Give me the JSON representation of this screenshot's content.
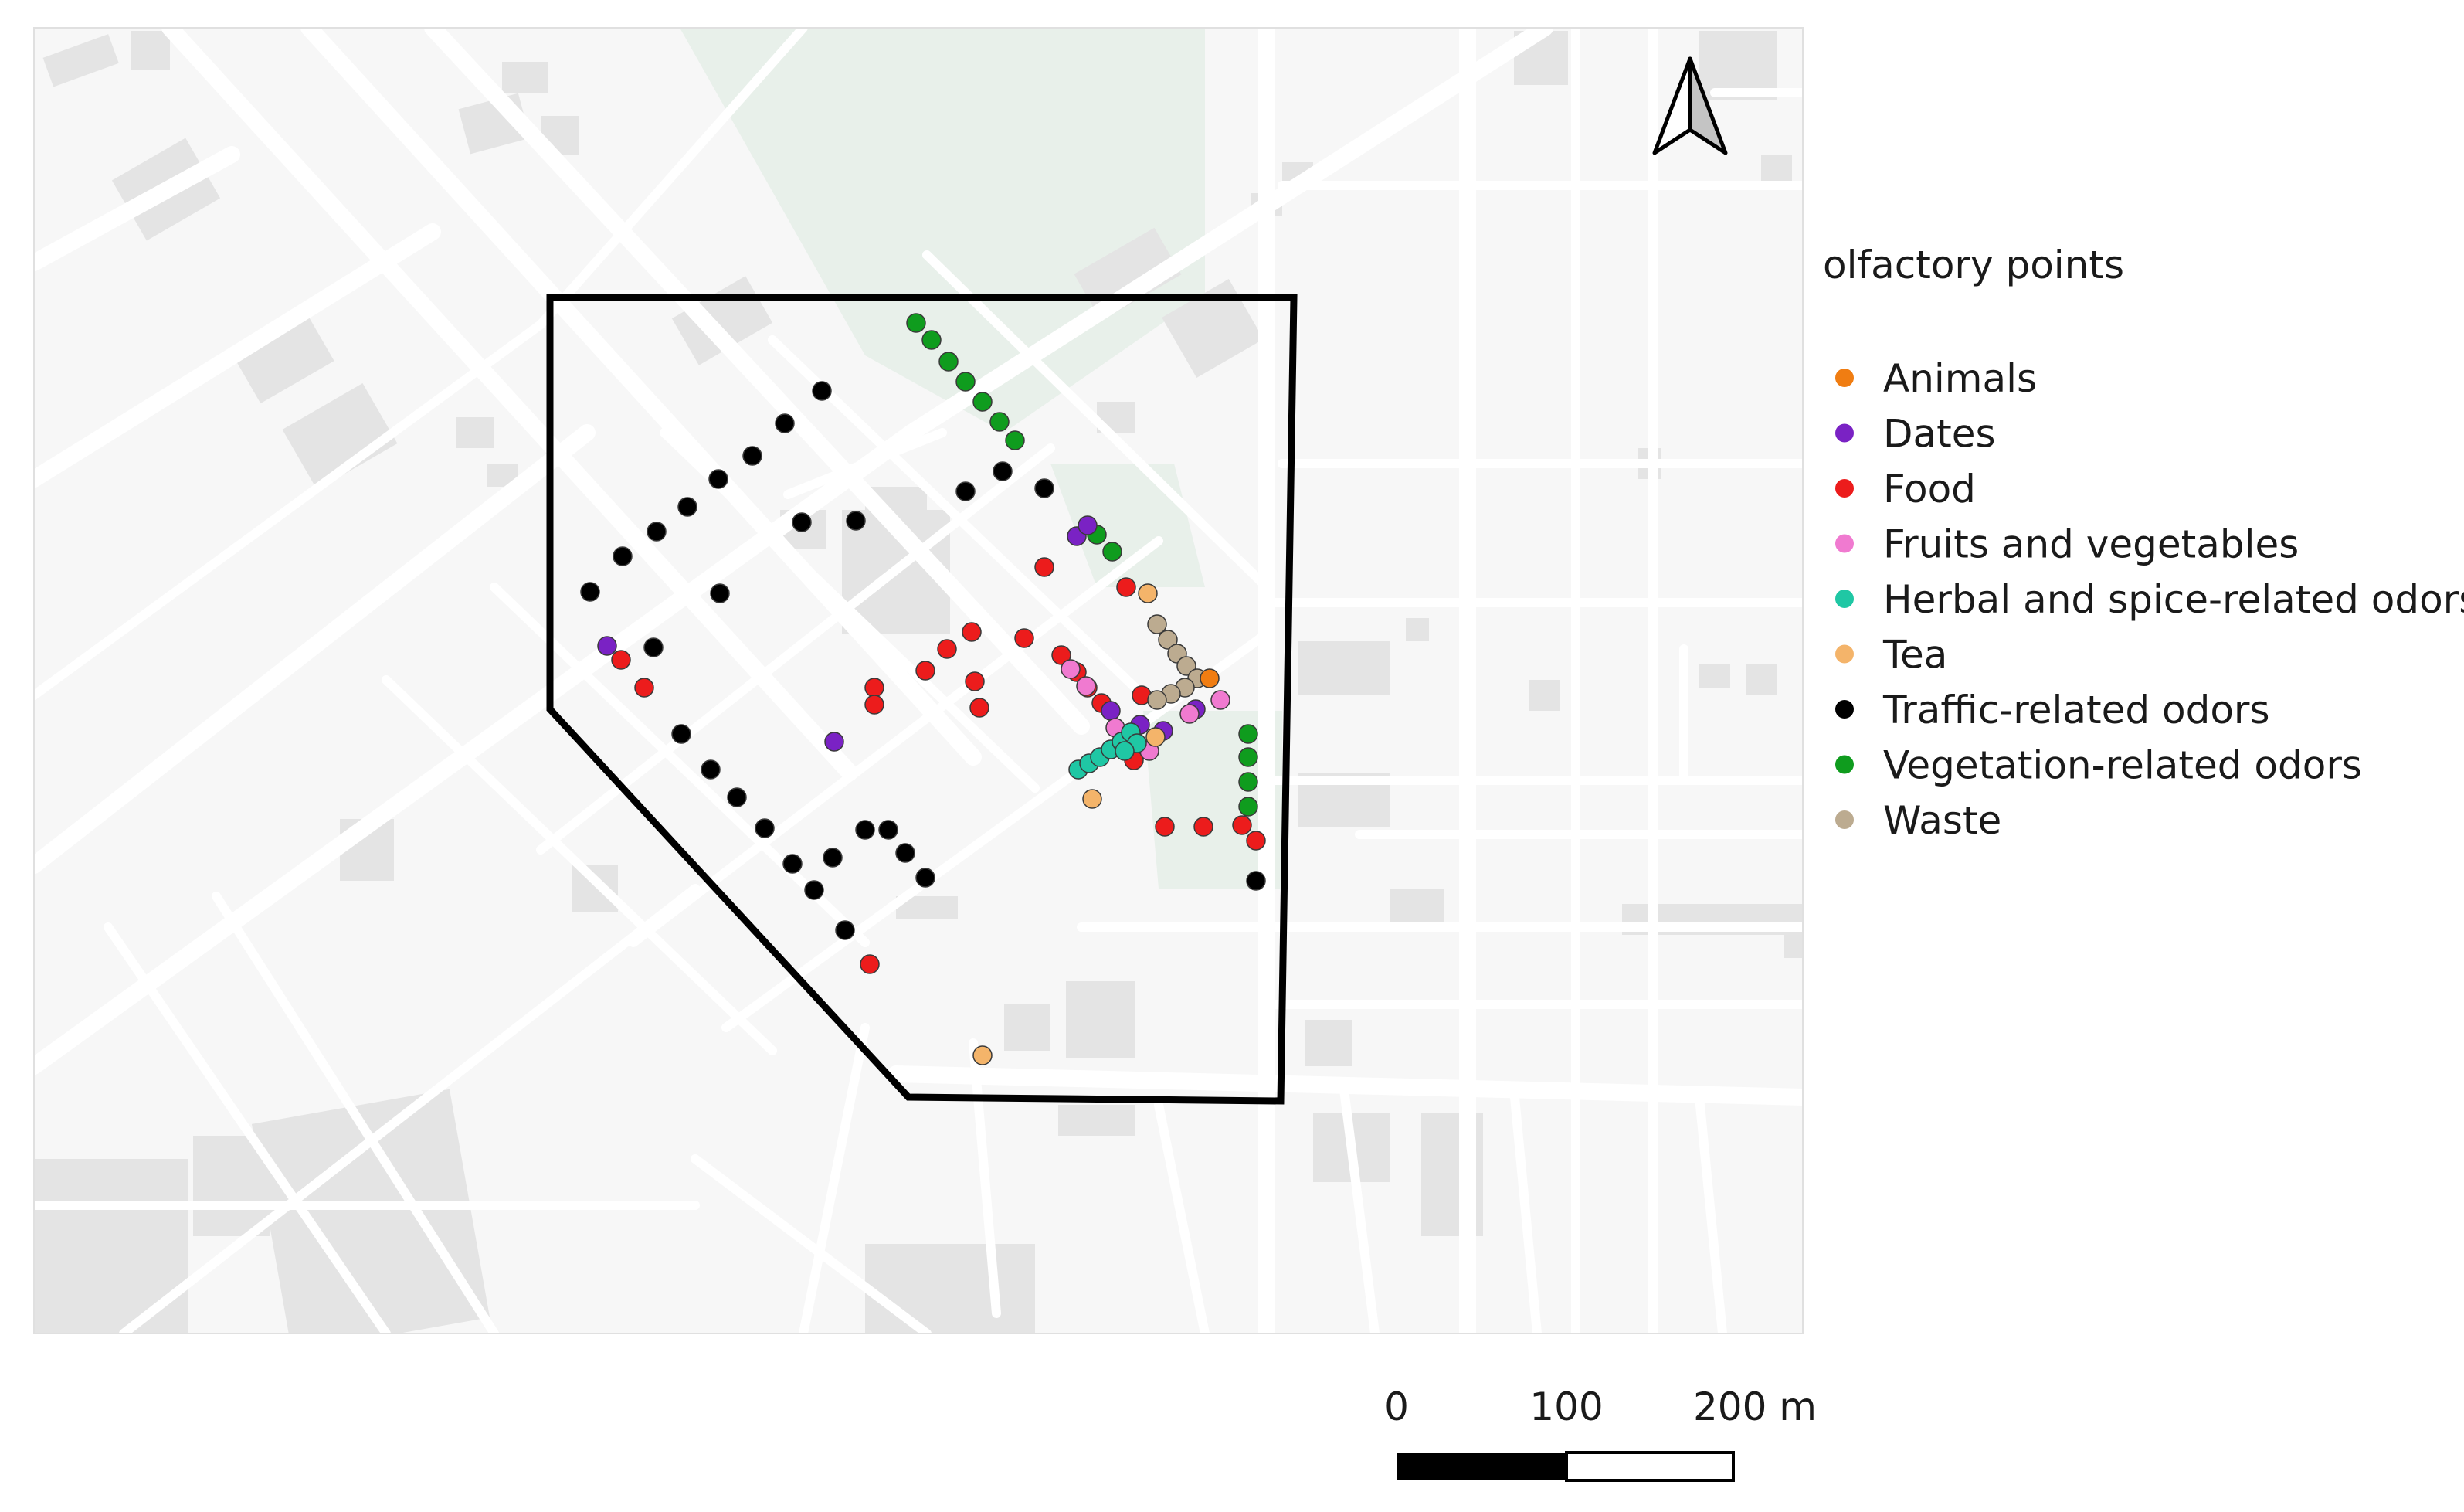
{
  "legend": {
    "title": "olfactory points",
    "categories": [
      {
        "key": "animals",
        "label": "Animals",
        "color": "#f07d12"
      },
      {
        "key": "dates",
        "label": "Dates",
        "color": "#7a22c4"
      },
      {
        "key": "food",
        "label": "Food",
        "color": "#ec1c1c"
      },
      {
        "key": "fruits",
        "label": "Fruits and vegetables",
        "color": "#f07ad0"
      },
      {
        "key": "herbal",
        "label": "Herbal and spice-related odors",
        "color": "#1fc7a4"
      },
      {
        "key": "tea",
        "label": "Tea",
        "color": "#f4b46a"
      },
      {
        "key": "traffic",
        "label": "Traffic-related odors",
        "color": "#000000"
      },
      {
        "key": "vegetation",
        "label": "Vegetation-related odors",
        "color": "#0f9c1e"
      },
      {
        "key": "waste",
        "label": "Waste",
        "color": "#bcab90"
      }
    ]
  },
  "scale_bar": {
    "labels": [
      "0",
      "100",
      "200 m"
    ]
  },
  "north_arrow": {
    "icon": "north-arrow-icon"
  },
  "colors": {
    "map_background": "#f7f7f7",
    "road": "#ffffff",
    "building": "#e6e6e6",
    "park": "#e9f1eb",
    "boundary": "#000000"
  }
}
